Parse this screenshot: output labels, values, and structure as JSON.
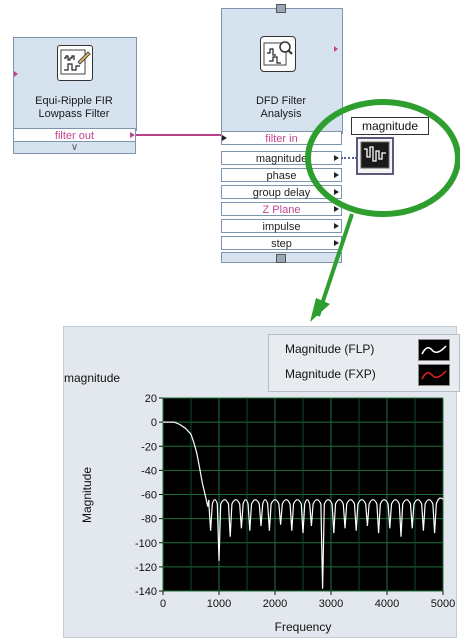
{
  "left_node": {
    "title_line1": "Equi-Ripple FIR",
    "title_line2": "Lowpass Filter",
    "output": "filter out",
    "expand_glyph": "∨",
    "icon": "equiripple-fir-icon"
  },
  "right_node": {
    "title_line1": "DFD Filter",
    "title_line2": "Analysis",
    "icon": "dfd-filter-analysis-icon",
    "terminals": [
      {
        "label": "filter in",
        "color": "#c0458e"
      },
      {
        "label": "magnitude",
        "color": "#222222"
      },
      {
        "label": "phase",
        "color": "#222222"
      },
      {
        "label": "group delay",
        "color": "#222222"
      },
      {
        "label": "Z Plane",
        "color": "#c0458e"
      },
      {
        "label": "impulse",
        "color": "#222222"
      },
      {
        "label": "step",
        "color": "#222222"
      }
    ]
  },
  "indicator": {
    "label": "magnitude",
    "icon": "waveform-graph-indicator-icon"
  },
  "highlight_color": "#2e9e2e",
  "graph_panel": {
    "label": "magnitude",
    "legend": [
      {
        "name": "Magnitude (FLP)",
        "color": "#ffffff"
      },
      {
        "name": "Magnitude (FXP)",
        "color": "#e02020"
      }
    ]
  },
  "chart_data": {
    "type": "line",
    "xlabel": "Frequency",
    "ylabel": "Magnitude",
    "xlim": [
      0,
      5000
    ],
    "ylim": [
      -140,
      20
    ],
    "xticks": [
      0,
      1000,
      2000,
      3000,
      4000,
      5000
    ],
    "yticks": [
      20,
      0,
      -20,
      -40,
      -60,
      -80,
      -100,
      -120,
      -140
    ],
    "grid": true,
    "series": [
      {
        "name": "Magnitude (FLP)",
        "color": "#ffffff",
        "passband": [
          [
            0,
            0
          ],
          [
            100,
            0
          ],
          [
            200,
            0
          ],
          [
            300,
            -2
          ],
          [
            400,
            -5
          ],
          [
            500,
            -10
          ],
          [
            550,
            -17
          ],
          [
            600,
            -25
          ],
          [
            650,
            -37
          ],
          [
            700,
            -50
          ],
          [
            760,
            -62
          ],
          [
            800,
            -70
          ]
        ],
        "stopband_ripple_top": -64,
        "stopband_start": 800,
        "stopband_end": 5000,
        "nulls": [
          [
            850,
            -90
          ],
          [
            1000,
            -115
          ],
          [
            1200,
            -95
          ],
          [
            1400,
            -88
          ],
          [
            1550,
            -90
          ],
          [
            1750,
            -86
          ],
          [
            1900,
            -90
          ],
          [
            2100,
            -85
          ],
          [
            2300,
            -90
          ],
          [
            2500,
            -92
          ],
          [
            2650,
            -86
          ],
          [
            2850,
            -138
          ],
          [
            3050,
            -92
          ],
          [
            3250,
            -88
          ],
          [
            3450,
            -90
          ],
          [
            3650,
            -86
          ],
          [
            3850,
            -92
          ],
          [
            4050,
            -88
          ],
          [
            4250,
            -95
          ],
          [
            4450,
            -88
          ],
          [
            4650,
            -90
          ],
          [
            4850,
            -92
          ]
        ]
      }
    ]
  }
}
